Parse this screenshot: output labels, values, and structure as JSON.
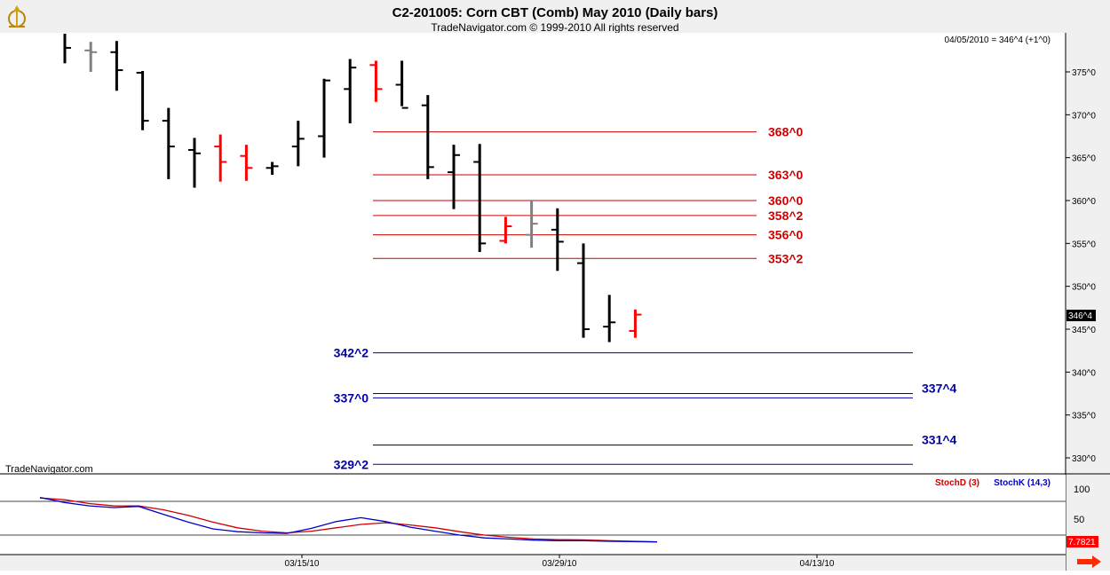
{
  "header": {
    "title": "C2-201005:  Corn CBT (Comb) May 2010  (Daily bars)",
    "subtitle": "TradeNavigator.com © 1999-2010 All rights reserved",
    "readout": "04/05/2010 = 346^4 (+1^0)"
  },
  "watermark": "TradeNavigator.com",
  "icons": {
    "logo": "sextant-logo-icon",
    "scroll": "arrow-right-icon"
  },
  "colors": {
    "up_bar": "#000000",
    "down_bar": "#ff0000",
    "neutral_bar": "#808080",
    "resistance": "#cc0000",
    "support": "#0000aa",
    "stoch_d": "#cc0000",
    "stoch_k": "#0000cc",
    "last_price_box": "#000000",
    "stoch_box": "#ff0000",
    "background": "#ffffff"
  },
  "chart_data": [
    {
      "type": "ohlc",
      "title": "C2-201005:  Corn CBT (Comb) May 2010  (Daily bars)",
      "x_tick_labels": [
        "03/15/10",
        "03/29/10",
        "04/13/10"
      ],
      "y_tick_labels": [
        "375^0",
        "370^0",
        "365^0",
        "360^0",
        "355^0",
        "350^0",
        "345^0",
        "340^0",
        "335^0",
        "330^0"
      ],
      "ylim": [
        329,
        378.5
      ],
      "last_price_label": "346^4",
      "bars": [
        {
          "o": 380,
          "h": 381,
          "l": 376,
          "c": 377.8,
          "color": "up"
        },
        {
          "o": 377.5,
          "h": 378.5,
          "l": 375,
          "c": 377.3,
          "color": "neutral"
        },
        {
          "o": 377.3,
          "h": 378.6,
          "l": 372.8,
          "c": 375.2,
          "color": "up"
        },
        {
          "o": 374.9,
          "h": 375.1,
          "l": 368.2,
          "c": 369.3,
          "color": "up"
        },
        {
          "o": 369.3,
          "h": 370.8,
          "l": 362.5,
          "c": 366.3,
          "color": "up"
        },
        {
          "o": 365.9,
          "h": 367.3,
          "l": 361.5,
          "c": 365.5,
          "color": "up"
        },
        {
          "o": 366.3,
          "h": 367.7,
          "l": 362.2,
          "c": 364.5,
          "color": "down"
        },
        {
          "o": 365.2,
          "h": 366.5,
          "l": 362.3,
          "c": 363.8,
          "color": "down"
        },
        {
          "o": 363.8,
          "h": 364.5,
          "l": 363.0,
          "c": 364.0,
          "color": "up"
        },
        {
          "o": 366.3,
          "h": 369.3,
          "l": 364.0,
          "c": 367.2,
          "color": "up"
        },
        {
          "o": 367.5,
          "h": 374.2,
          "l": 365.0,
          "c": 374.0,
          "color": "up"
        },
        {
          "o": 373.0,
          "h": 376.5,
          "l": 369.0,
          "c": 375.5,
          "color": "up"
        },
        {
          "o": 375.8,
          "h": 376.3,
          "l": 371.5,
          "c": 373.0,
          "color": "down"
        },
        {
          "o": 373.5,
          "h": 376.3,
          "l": 371.0,
          "c": 370.8,
          "color": "up"
        },
        {
          "o": 371.1,
          "h": 372.3,
          "l": 362.5,
          "c": 363.9,
          "color": "up"
        },
        {
          "o": 363.3,
          "h": 366.5,
          "l": 359.0,
          "c": 365.3,
          "color": "up"
        },
        {
          "o": 364.5,
          "h": 366.6,
          "l": 354.0,
          "c": 355.0,
          "color": "up"
        },
        {
          "o": 355.3,
          "h": 358.1,
          "l": 355.0,
          "c": 357.0,
          "color": "down"
        },
        {
          "o": 356.0,
          "h": 360.0,
          "l": 354.5,
          "c": 357.3,
          "color": "neutral"
        },
        {
          "o": 356.6,
          "h": 359.1,
          "l": 351.8,
          "c": 355.2,
          "color": "up"
        },
        {
          "o": 352.7,
          "h": 355.0,
          "l": 344.0,
          "c": 345.0,
          "color": "up"
        },
        {
          "o": 345.3,
          "h": 349.0,
          "l": 343.5,
          "c": 345.8,
          "color": "up"
        },
        {
          "o": 344.8,
          "h": 347.3,
          "l": 344.0,
          "c": 346.7,
          "color": "down"
        }
      ],
      "resistance_levels": [
        {
          "value": 368.0,
          "label": "368^0"
        },
        {
          "value": 363.0,
          "label": "363^0"
        },
        {
          "value": 360.0,
          "label": "360^0"
        },
        {
          "value": 358.25,
          "label": "358^2"
        },
        {
          "value": 356.0,
          "label": "356^0"
        },
        {
          "value": 353.25,
          "label": "353^2"
        }
      ],
      "support_levels": [
        {
          "value": 342.25,
          "label": "342^2",
          "label_side": "left"
        },
        {
          "value": 337.5,
          "label": "337^4",
          "label_side": "right"
        },
        {
          "value": 337.0,
          "label": "337^0",
          "label_side": "left"
        },
        {
          "value": 331.5,
          "label": "331^4",
          "label_side": "right"
        },
        {
          "value": 329.25,
          "label": "329^2",
          "label_side": "left"
        }
      ]
    },
    {
      "type": "line",
      "legend": [
        {
          "label": "StochD (3)",
          "color": "#cc0000"
        },
        {
          "label": "StochK (14,3)",
          "color": "#0000cc"
        }
      ],
      "y_tick_labels": [
        "100",
        "50"
      ],
      "ylim": [
        0,
        100
      ],
      "last_value_label": "7.7821",
      "series": [
        {
          "name": "StochD (3)",
          "values": [
            86,
            83,
            76,
            72,
            72,
            65,
            55,
            43,
            33,
            27,
            24,
            27,
            33,
            39,
            42,
            38,
            33,
            26,
            20,
            16,
            13,
            12,
            11.5,
            10,
            9,
            8
          ]
        },
        {
          "name": "StochK (14,3)",
          "values": [
            87,
            78,
            72,
            69,
            71,
            57,
            43,
            31,
            26,
            24,
            23,
            32,
            44,
            51,
            44,
            34,
            27,
            20,
            15,
            13,
            11,
            10,
            10,
            9,
            8.5,
            7.8
          ]
        }
      ]
    }
  ]
}
